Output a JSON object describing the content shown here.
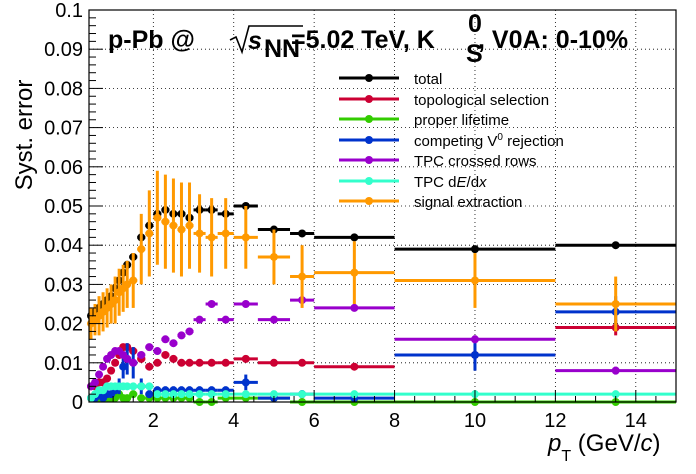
{
  "chart_data": {
    "type": "scatter",
    "title_parts": {
      "system": "p-Pb @",
      "energy_label": "s",
      "energy_subscript": "NN",
      "energy_value": "=5.02 TeV, K",
      "particle_superscript": "0",
      "particle_subscript": "S",
      "suffix": ", V0A: 0-10%"
    },
    "xlabel": "p",
    "xlabel_subscript": "T",
    "xlabel_unit_open": " (GeV/",
    "xlabel_unit_c": "c",
    "xlabel_unit_close": ")",
    "ylabel": "Syst. error",
    "xlim": [
      0.4,
      15
    ],
    "ylim": [
      0,
      0.1
    ],
    "x_ticks": [
      2,
      4,
      6,
      8,
      10,
      12,
      14
    ],
    "y_ticks": [
      0,
      0.01,
      0.02,
      0.03,
      0.04,
      0.05,
      0.06,
      0.07,
      0.08,
      0.09,
      0.1
    ],
    "y_tick_labels": [
      "0",
      "0.01",
      "0.02",
      "0.03",
      "0.04",
      "0.05",
      "0.06",
      "0.07",
      "0.08",
      "0.09",
      "0.1"
    ],
    "grid": true,
    "legend_position": "top-right",
    "bins": [
      0.4,
      0.5,
      0.6,
      0.7,
      0.8,
      0.9,
      1.0,
      1.1,
      1.2,
      1.3,
      1.4,
      1.6,
      1.8,
      2.0,
      2.2,
      2.4,
      2.6,
      2.8,
      3.0,
      3.3,
      3.6,
      4.0,
      4.6,
      5.4,
      6.0,
      8.0,
      12.0,
      15.0
    ],
    "series": [
      {
        "name": "total",
        "color": "#000000",
        "values": [
          0.022,
          0.023,
          0.024,
          0.025,
          0.026,
          0.027,
          0.029,
          0.031,
          0.033,
          0.035,
          0.037,
          0.042,
          0.045,
          0.048,
          0.049,
          0.048,
          0.048,
          0.047,
          0.049,
          0.049,
          0.048,
          0.05,
          0.044,
          0.043,
          0.042,
          0.039,
          0.04
        ],
        "errors": null
      },
      {
        "name": "topological selection",
        "color": "#cc0033",
        "values": [
          0.004,
          0.004,
          0.005,
          0.005,
          0.006,
          0.008,
          0.01,
          0.012,
          0.014,
          0.014,
          0.013,
          0.011,
          0.009,
          0.01,
          0.012,
          0.011,
          0.01,
          0.01,
          0.01,
          0.01,
          0.01,
          0.011,
          0.01,
          0.01,
          0.009,
          0.012,
          0.019
        ],
        "errors": [
          0,
          0,
          0,
          0,
          0,
          0,
          0,
          0,
          0,
          0,
          0,
          0,
          0,
          0,
          0,
          0,
          0,
          0,
          0,
          0,
          0,
          0,
          0,
          0,
          0,
          0,
          0.002
        ]
      },
      {
        "name": "proper lifetime",
        "color": "#33cc00",
        "values": [
          0.001,
          0.001,
          0.001,
          0.002,
          0.001,
          0.001,
          0.001,
          0.002,
          0.001,
          0.001,
          0.002,
          0.001,
          0.001,
          0.001,
          0.001,
          0.001,
          0.001,
          0.001,
          0.0,
          0.0,
          0.001,
          0.001,
          0.001,
          0.0,
          0.0,
          0.0,
          0.0
        ],
        "errors": null
      },
      {
        "name": "competing V0 rejection",
        "color": "#0033cc",
        "values": [
          0.001,
          0.001,
          0.002,
          0.001,
          0.002,
          0.002,
          0.003,
          0.004,
          0.009,
          0.011,
          0.01,
          0.004,
          0.002,
          0.003,
          0.003,
          0.003,
          0.003,
          0.003,
          0.003,
          0.003,
          0.003,
          0.005,
          0.001,
          0.002,
          0.001,
          0.012,
          0.023
        ],
        "errors": [
          0,
          0,
          0,
          0,
          0,
          0,
          0.001,
          0.002,
          0.003,
          0.004,
          0.004,
          0.002,
          0.001,
          0.001,
          0.001,
          0.001,
          0.001,
          0.001,
          0.001,
          0.001,
          0.001,
          0.002,
          0.001,
          0.001,
          0.001,
          0.004,
          0.004
        ]
      },
      {
        "name": "TPC crossed rows",
        "color": "#9900cc",
        "values": [
          0.004,
          0.005,
          0.007,
          0.009,
          0.011,
          0.012,
          0.013,
          0.013,
          0.012,
          0.011,
          0.01,
          0.012,
          0.014,
          0.013,
          0.016,
          0.015,
          0.017,
          0.018,
          0.021,
          0.025,
          0.021,
          0.025,
          0.021,
          0.026,
          0.024,
          0.016,
          0.008
        ],
        "errors": [
          0,
          0,
          0,
          0,
          0,
          0,
          0,
          0,
          0,
          0,
          0,
          0,
          0,
          0,
          0,
          0,
          0,
          0,
          0,
          0,
          0,
          0,
          0,
          0,
          0,
          0.001,
          0.001
        ]
      },
      {
        "name": "TPC dE/dx",
        "color": "#33ffcc",
        "values": [
          0.001,
          0.002,
          0.003,
          0.003,
          0.004,
          0.004,
          0.004,
          0.004,
          0.004,
          0.004,
          0.004,
          0.004,
          0.004,
          0.002,
          0.002,
          0.002,
          0.002,
          0.002,
          0.002,
          0.002,
          0.002,
          0.002,
          0.002,
          0.002,
          0.002,
          0.002,
          0.002
        ],
        "errors": null
      },
      {
        "name": "signal extraction",
        "color": "#ff9900",
        "values": [
          0.02,
          0.021,
          0.022,
          0.023,
          0.024,
          0.025,
          0.026,
          0.028,
          0.029,
          0.03,
          0.031,
          0.039,
          0.043,
          0.047,
          0.046,
          0.045,
          0.044,
          0.045,
          0.043,
          0.042,
          0.043,
          0.042,
          0.037,
          0.032,
          0.033,
          0.031,
          0.025
        ],
        "errors": [
          0.004,
          0.004,
          0.005,
          0.005,
          0.005,
          0.005,
          0.006,
          0.006,
          0.006,
          0.006,
          0.007,
          0.009,
          0.011,
          0.012,
          0.012,
          0.012,
          0.012,
          0.011,
          0.01,
          0.01,
          0.009,
          0.008,
          0.007,
          0.008,
          0.008,
          0.007,
          0.007
        ]
      }
    ],
    "legend_labels": {
      "total": "total",
      "topo": "topological selection",
      "lifetime": "proper lifetime",
      "competing_prefix": "competing V",
      "competing_sup": "0",
      "competing_suffix": " rejection",
      "tpc_rows": "TPC crossed rows",
      "dedx_prefix": "TPC d",
      "dedx_E": "E",
      "dedx_mid": "/d",
      "dedx_x": "x",
      "signal": "signal extraction"
    }
  }
}
